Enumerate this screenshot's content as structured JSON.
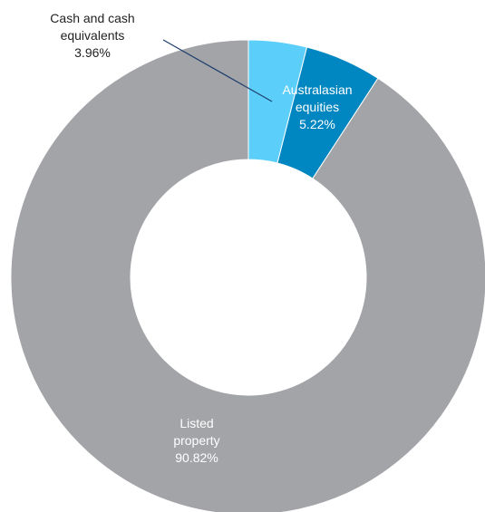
{
  "chart_data": {
    "type": "pie",
    "variant": "donut",
    "start": "top, clockwise",
    "slices": [
      {
        "name_lines": [
          "Cash and cash",
          "equivalents"
        ],
        "value": 3.96,
        "value_label": "3.96%",
        "color": "#5bcefa",
        "label_style": "outside-with-leader"
      },
      {
        "name_lines": [
          "Australasian",
          "equities"
        ],
        "value": 5.22,
        "value_label": "5.22%",
        "color": "#0086c0",
        "label_style": "inside-light"
      },
      {
        "name_lines": [
          "Listed",
          "property"
        ],
        "value": 90.82,
        "value_label": "90.82%",
        "color": "#a3a4a8",
        "label_style": "inside-light"
      }
    ]
  }
}
